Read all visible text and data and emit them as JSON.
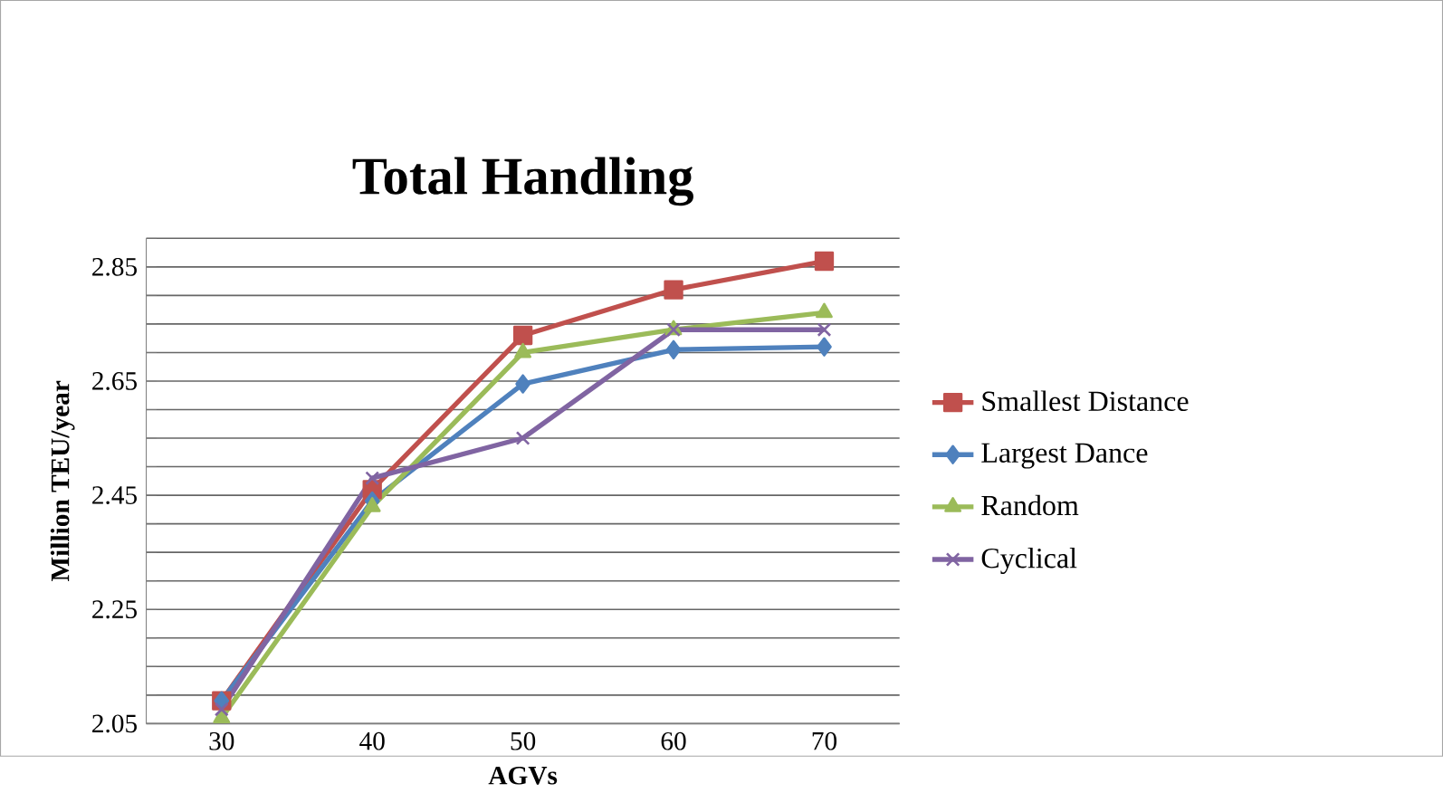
{
  "chart_data": {
    "type": "line",
    "title": "Total Handling",
    "xlabel": "AGVs",
    "ylabel": "Million TEU/year",
    "categories": [
      "30",
      "40",
      "50",
      "60",
      "70"
    ],
    "series": [
      {
        "name": "Smallest Distance",
        "color": "#c0504d",
        "marker": "square",
        "values": [
          2.09,
          2.46,
          2.73,
          2.81,
          2.86
        ]
      },
      {
        "name": "Largest Dance",
        "color": "#4f81bd",
        "marker": "diamond",
        "values": [
          2.09,
          2.44,
          2.645,
          2.705,
          2.71
        ]
      },
      {
        "name": "Random",
        "color": "#9bbb59",
        "marker": "triangle",
        "values": [
          2.06,
          2.43,
          2.7,
          2.74,
          2.77
        ]
      },
      {
        "name": "Cyclical",
        "color": "#8064a2",
        "marker": "cross",
        "values": [
          2.075,
          2.48,
          2.55,
          2.74,
          2.74
        ]
      }
    ],
    "ylim": [
      2.05,
      2.9
    ],
    "yticks": [
      2.05,
      {
        "value": 2.1,
        "label": null
      },
      {
        "value": 2.15,
        "label": null
      },
      {
        "value": 2.2,
        "label": null
      },
      2.25,
      {
        "value": 2.3,
        "label": null
      },
      {
        "value": 2.35,
        "label": null
      },
      {
        "value": 2.4,
        "label": null
      },
      2.45,
      {
        "value": 2.5,
        "label": null
      },
      {
        "value": 2.55,
        "label": null
      },
      {
        "value": 2.6,
        "label": null
      },
      2.65,
      {
        "value": 2.7,
        "label": null
      },
      {
        "value": 2.75,
        "label": null
      },
      {
        "value": 2.8,
        "label": null
      },
      2.85,
      {
        "value": 2.9,
        "label": null
      }
    ],
    "grid": "y",
    "legend": "right",
    "line_style": "solid"
  }
}
